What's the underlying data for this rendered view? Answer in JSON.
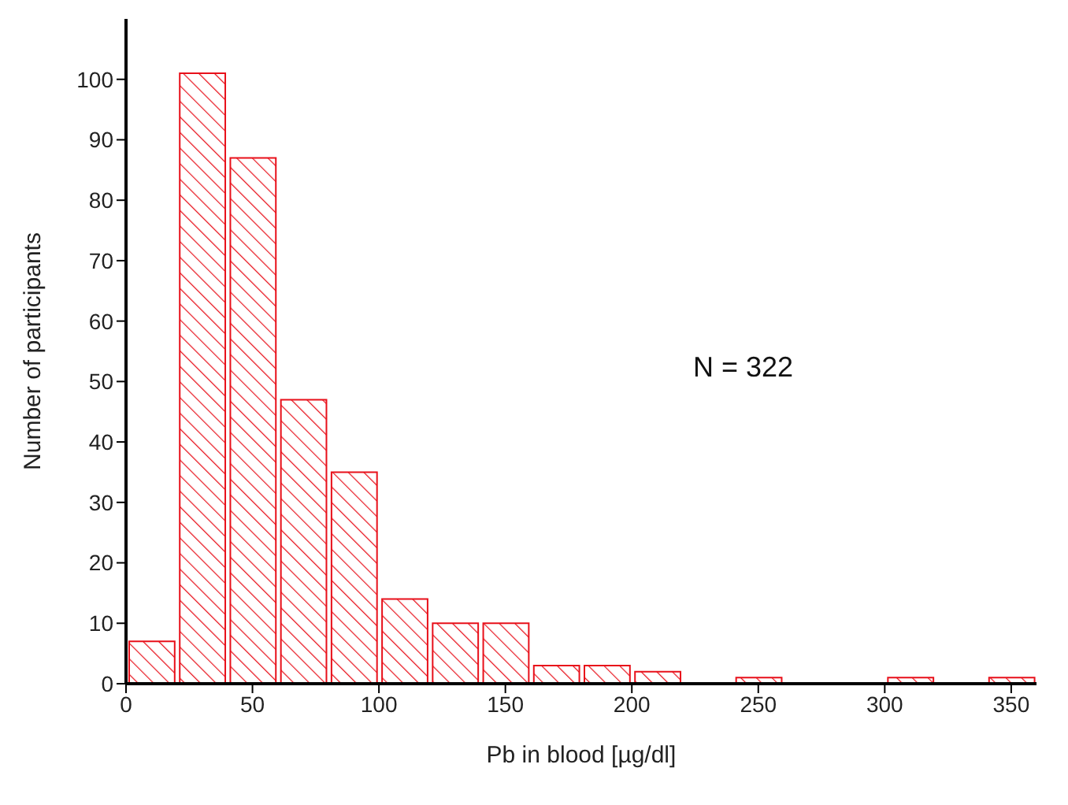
{
  "chart_data": {
    "type": "histogram",
    "xlabel": "Pb in blood [µg/dl]",
    "ylabel": "Number of participants",
    "annotations": [
      "N = 322"
    ],
    "bins": [
      0,
      20,
      40,
      60,
      80,
      100,
      120,
      140,
      160,
      180,
      200,
      220,
      240,
      260,
      280,
      300,
      320,
      340,
      360
    ],
    "values": [
      7,
      101,
      87,
      47,
      35,
      14,
      10,
      10,
      3,
      3,
      2,
      0,
      1,
      0,
      0,
      1,
      0,
      1
    ],
    "color": "#e8101a",
    "xlim": [
      0,
      360
    ],
    "xticks": [
      0,
      50,
      100,
      150,
      200,
      250,
      300,
      350
    ],
    "ylim": [
      0,
      110
    ],
    "yticks": [
      0,
      10,
      20,
      30,
      40,
      50,
      60,
      70,
      80,
      90,
      100
    ]
  }
}
